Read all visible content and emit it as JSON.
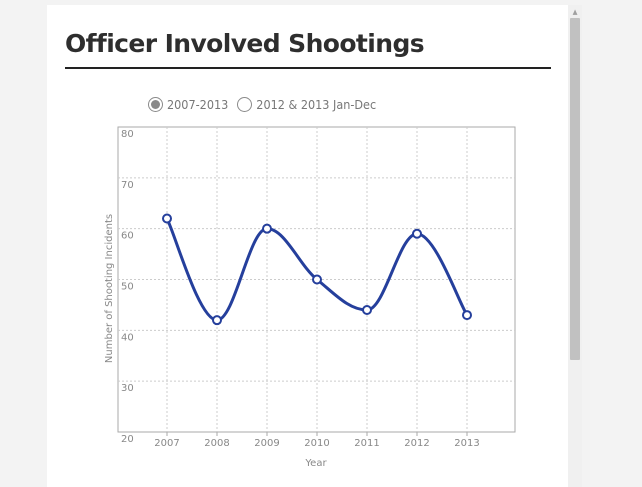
{
  "page": {
    "title": "Officer Involved Shootings"
  },
  "controls": {
    "options": [
      {
        "label": "2007-2013",
        "checked": true
      },
      {
        "label": "2012 & 2013 Jan-Dec",
        "checked": false
      }
    ]
  },
  "scrollbar": {
    "up_icon": "▲"
  },
  "colors": {
    "line": "#253f9c",
    "grid": "#cccccc",
    "axis": "#aaaaaa"
  },
  "chart_data": {
    "type": "line",
    "title": "",
    "xlabel": "Year",
    "ylabel": "Number of Shooting Incidents",
    "categories": [
      "2007",
      "2008",
      "2009",
      "2010",
      "2011",
      "2012",
      "2013"
    ],
    "series": [
      {
        "values": [
          62,
          42,
          60,
          50,
          44,
          59,
          43
        ]
      }
    ],
    "ylim": [
      20,
      80
    ],
    "yticks": [
      "20",
      "30",
      "40",
      "50",
      "60",
      "70",
      "80"
    ],
    "grid": true,
    "smooth": true,
    "legend": "none"
  }
}
